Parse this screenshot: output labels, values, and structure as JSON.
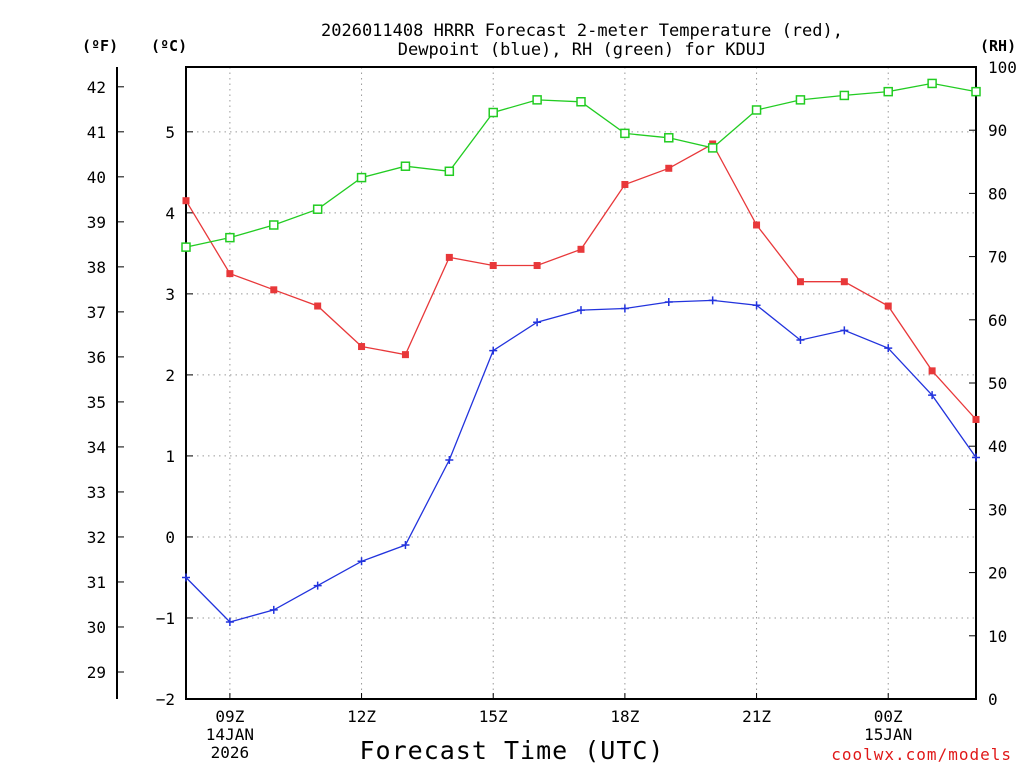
{
  "title": {
    "line1": "2026011408 HRRR Forecast 2-meter Temperature (red),",
    "line2": "Dewpoint (blue), RH (green) for KDUJ"
  },
  "units": {
    "fahrenheit": "(ºF)",
    "celsius": "(ºC)",
    "rh": "(RH)"
  },
  "credit": "coolwx.com/models",
  "colors": {
    "temperature": "#e8383a",
    "dewpoint": "#2233dd",
    "rh": "#22cc22",
    "axis": "#000000"
  },
  "chart_data": {
    "type": "line",
    "title": "2026011408 HRRR Forecast 2-meter Temperature (red), Dewpoint (blue), RH (green) for KDUJ",
    "xlabel": "Forecast Time (UTC)",
    "x_hours_utc": [
      8,
      9,
      10,
      11,
      12,
      13,
      14,
      15,
      16,
      17,
      18,
      19,
      20,
      21,
      22,
      23,
      24,
      25,
      26
    ],
    "xlim": [
      8,
      26
    ],
    "x_ticks": [
      {
        "hour": 9,
        "lines": [
          "09Z",
          "14JAN",
          "2026"
        ]
      },
      {
        "hour": 12,
        "lines": [
          "12Z"
        ]
      },
      {
        "hour": 15,
        "lines": [
          "15Z"
        ]
      },
      {
        "hour": 18,
        "lines": [
          "18Z"
        ]
      },
      {
        "hour": 21,
        "lines": [
          "21Z"
        ]
      },
      {
        "hour": 24,
        "lines": [
          "00Z",
          "15JAN"
        ]
      }
    ],
    "celsius_axis": {
      "ylim": [
        -2,
        5.8
      ],
      "ticks": [
        -2,
        -1,
        0,
        1,
        2,
        3,
        4,
        5
      ],
      "tick_labels": [
        "−2",
        "−1",
        "0",
        "1",
        "2",
        "3",
        "4",
        "5"
      ]
    },
    "fahrenheit_axis": {
      "ticks": [
        29,
        30,
        31,
        32,
        33,
        34,
        35,
        36,
        37,
        38,
        39,
        40,
        41,
        42
      ]
    },
    "rh_axis": {
      "ylim": [
        0,
        100
      ],
      "ticks": [
        0,
        10,
        20,
        30,
        40,
        50,
        60,
        70,
        80,
        90,
        100
      ]
    },
    "series": [
      {
        "name": "2-meter Temperature",
        "key": "temperature",
        "axis": "celsius",
        "marker": "filled-square",
        "values": [
          4.15,
          3.25,
          3.05,
          2.85,
          2.35,
          2.25,
          3.45,
          3.35,
          3.35,
          3.55,
          4.35,
          4.55,
          4.85,
          3.85,
          3.15,
          3.15,
          2.85,
          2.05,
          1.45
        ]
      },
      {
        "name": "Dewpoint",
        "key": "dewpoint",
        "axis": "celsius",
        "marker": "plus",
        "values": [
          -0.5,
          -1.05,
          -0.9,
          -0.6,
          -0.3,
          -0.1,
          0.95,
          2.3,
          2.65,
          2.8,
          2.82,
          2.9,
          2.92,
          2.86,
          2.43,
          2.55,
          2.33,
          1.75,
          0.98
        ]
      },
      {
        "name": "Relative Humidity",
        "key": "rh",
        "axis": "rh",
        "marker": "open-square",
        "values": [
          71.5,
          73,
          75,
          77.5,
          82.5,
          84.3,
          83.5,
          92.8,
          94.8,
          94.5,
          89.5,
          88.8,
          87.2,
          93.2,
          94.8,
          95.5,
          96.1,
          97.4,
          96.1
        ]
      }
    ]
  }
}
